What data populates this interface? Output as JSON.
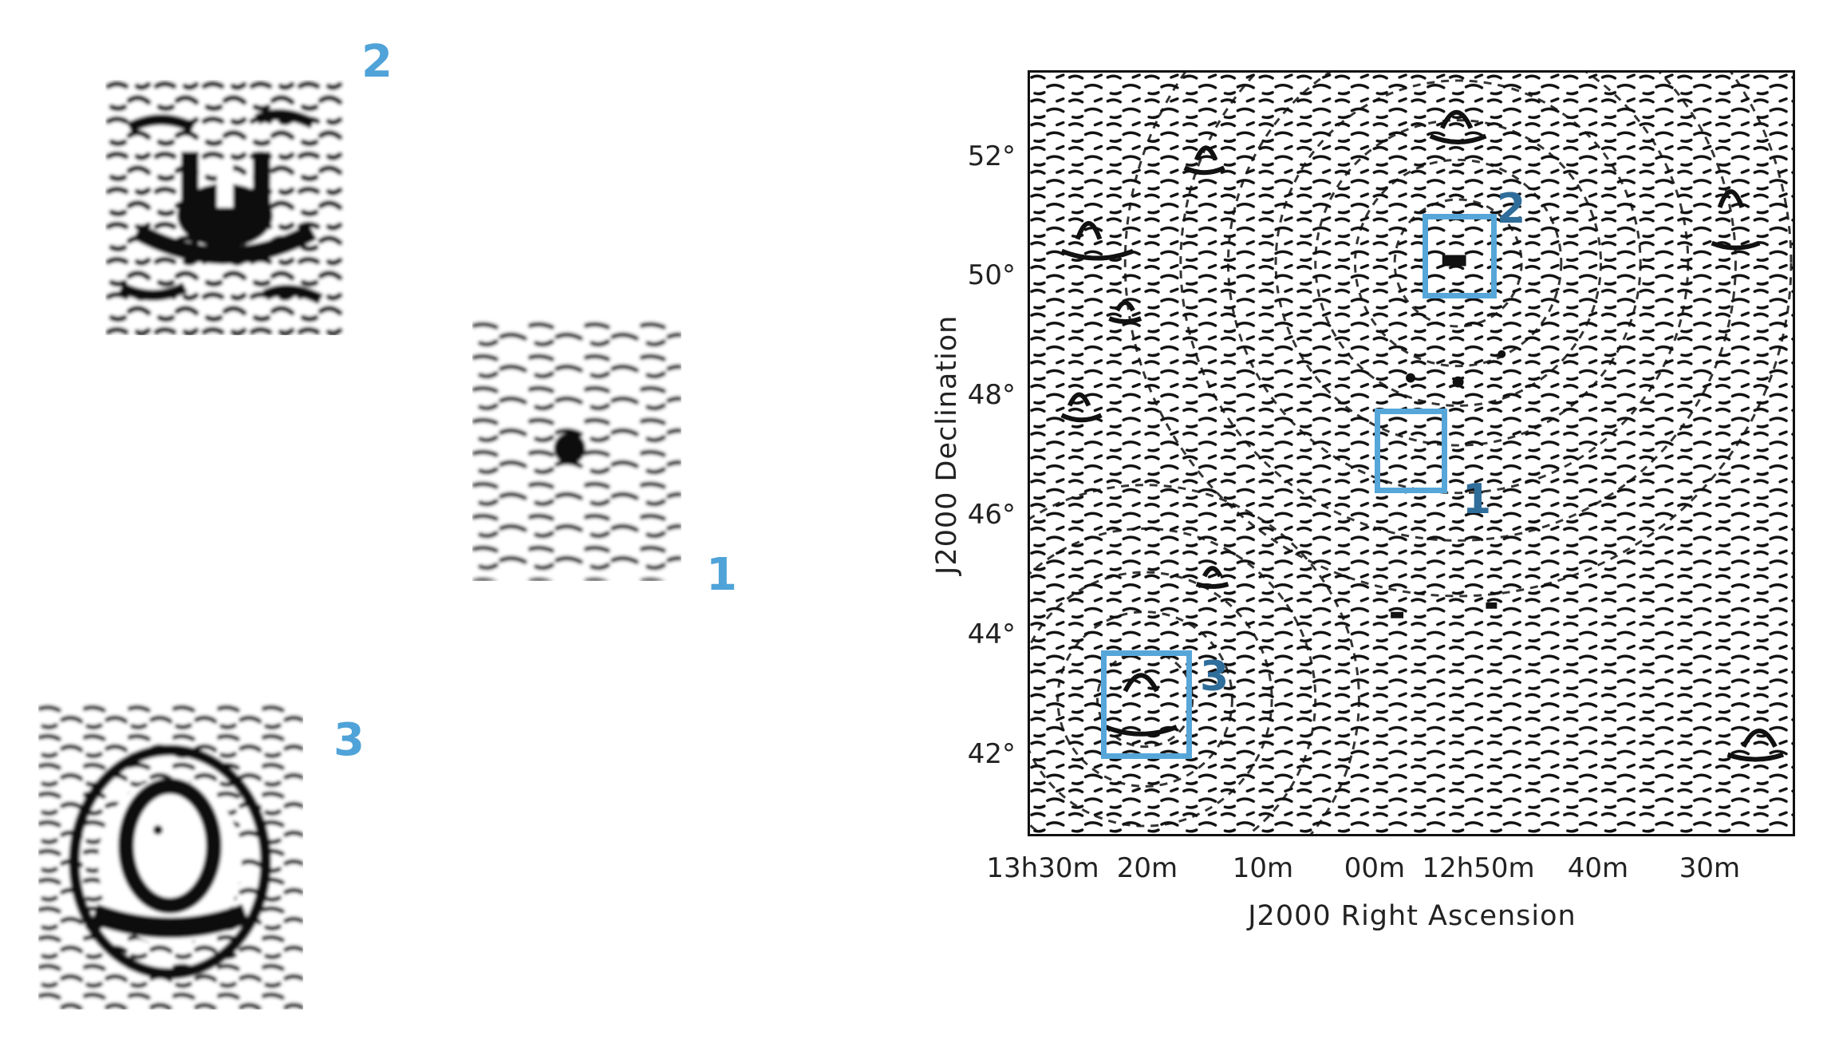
{
  "cutouts": [
    {
      "label": "2"
    },
    {
      "label": "1"
    },
    {
      "label": "3"
    }
  ],
  "map": {
    "y_axis_title": "J2000 Declination",
    "x_axis_title": "J2000 Right Ascension",
    "y_ticks": [
      "52°",
      "50°",
      "48°",
      "46°",
      "44°",
      "42°"
    ],
    "x_ticks": [
      "13h30m",
      "20m",
      "10m",
      "00m",
      "12h50m",
      "40m",
      "30m"
    ],
    "boxes": [
      {
        "label": "2"
      },
      {
        "label": "1"
      },
      {
        "label": "3"
      }
    ]
  },
  "colors": {
    "cutout_label": "#4fa3d8",
    "map_box": "#56a6d9",
    "map_box_label": "#2f6d9a",
    "ink": "#111111"
  }
}
